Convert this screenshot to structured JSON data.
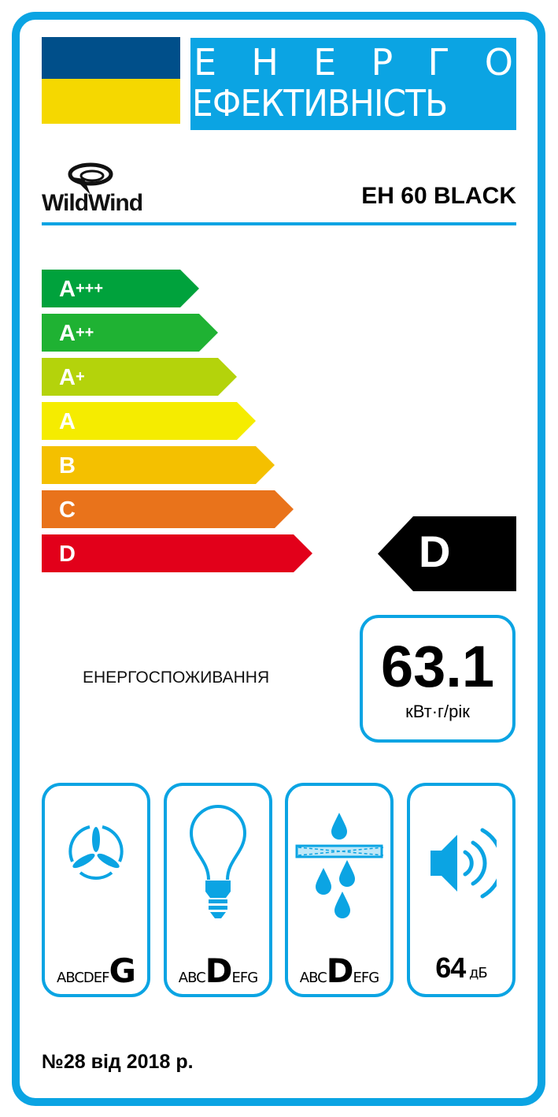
{
  "header": {
    "title_line1": "ЕНЕРГО",
    "title_line1_letters": [
      "Е",
      "Н",
      "Е",
      "Р",
      "Г",
      "О"
    ],
    "title_line2": "ЕФЕКТИВНІСТЬ",
    "brand": "WildWind",
    "model": "EH 60 BLACK",
    "flag_colors": [
      "#004f8a",
      "#f5d800"
    ]
  },
  "scale": [
    {
      "base": "A",
      "plus": "+++",
      "color": "#00a23c"
    },
    {
      "base": "A",
      "plus": "++",
      "color": "#1fb233"
    },
    {
      "base": "A",
      "plus": "+",
      "color": "#b4d30b"
    },
    {
      "base": "A",
      "plus": "",
      "color": "#f5ec00"
    },
    {
      "base": "B",
      "plus": "",
      "color": "#f4c000"
    },
    {
      "base": "C",
      "plus": "",
      "color": "#e9731b"
    },
    {
      "base": "D",
      "plus": "",
      "color": "#e2001a"
    }
  ],
  "rating": {
    "class": "D"
  },
  "consumption": {
    "label": "ЕНЕРГОСПОЖИВАННЯ",
    "value": "63.1",
    "unit": "кВт·г/рік"
  },
  "pictograms": [
    {
      "icon": "fan-icon",
      "classes_pre": "ABCDEF",
      "selected": "G",
      "classes_post": ""
    },
    {
      "icon": "light-bulb-icon",
      "classes_pre": "ABC",
      "selected": "D",
      "classes_post": "EFG"
    },
    {
      "icon": "grease-filter-icon",
      "classes_pre": "ABC",
      "selected": "D",
      "classes_post": "EFG"
    },
    {
      "icon": "speaker-icon",
      "value": "64",
      "unit": "дБ"
    }
  ],
  "footer": "№28 від 2018 р.",
  "accent": "#0ba4e3"
}
